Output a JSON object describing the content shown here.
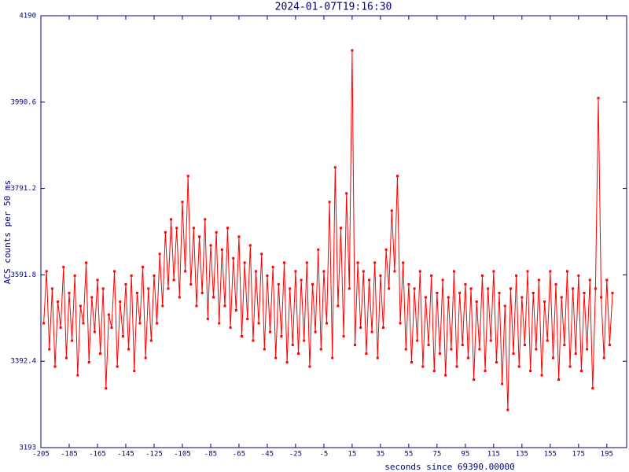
{
  "chart_data": {
    "type": "line",
    "title": "2024-01-07T19:16:30",
    "x_label": "seconds since 69390.00000",
    "y_label": "ACS counts per 50 ms",
    "xlim": [
      -205,
      209
    ],
    "ylim": [
      3193,
      4190
    ],
    "xticks": [
      -205,
      -185,
      -165,
      -145,
      -125,
      -105,
      -85,
      -65,
      -45,
      -25,
      -5,
      15,
      35,
      55,
      75,
      95,
      115,
      135,
      155,
      175,
      195
    ],
    "yticks": [
      3193,
      3392.4,
      3591.8,
      3791.2,
      3990.6,
      4190
    ],
    "series": [
      {
        "color": "#ff0000",
        "x": [
          -203,
          -201,
          -199,
          -197,
          -195,
          -193,
          -191,
          -189,
          -187,
          -185,
          -183,
          -181,
          -179,
          -177,
          -175,
          -173,
          -171,
          -169,
          -167,
          -165,
          -163,
          -161,
          -159,
          -157,
          -155,
          -153,
          -151,
          -149,
          -147,
          -145,
          -143,
          -141,
          -139,
          -137,
          -135,
          -133,
          -131,
          -129,
          -127,
          -125,
          -123,
          -121,
          -119,
          -117,
          -115,
          -113,
          -111,
          -109,
          -107,
          -105,
          -103,
          -101,
          -99,
          -97,
          -95,
          -93,
          -91,
          -89,
          -87,
          -85,
          -83,
          -81,
          -79,
          -77,
          -75,
          -73,
          -71,
          -69,
          -67,
          -65,
          -63,
          -61,
          -59,
          -57,
          -55,
          -53,
          -51,
          -49,
          -47,
          -45,
          -43,
          -41,
          -39,
          -37,
          -35,
          -33,
          -31,
          -29,
          -27,
          -25,
          -23,
          -21,
          -19,
          -17,
          -15,
          -13,
          -11,
          -9,
          -7,
          -5,
          -3,
          -1,
          1,
          3,
          5,
          7,
          9,
          11,
          13,
          15,
          17,
          19,
          21,
          23,
          25,
          27,
          29,
          31,
          33,
          35,
          37,
          39,
          41,
          43,
          45,
          47,
          49,
          51,
          53,
          55,
          57,
          59,
          61,
          63,
          65,
          67,
          69,
          71,
          73,
          75,
          77,
          79,
          81,
          83,
          85,
          87,
          89,
          91,
          93,
          95,
          97,
          99,
          101,
          103,
          105,
          107,
          109,
          111,
          113,
          115,
          117,
          119,
          121,
          123,
          125,
          127,
          129,
          131,
          133,
          135,
          137,
          139,
          141,
          143,
          145,
          147,
          149,
          151,
          153,
          155,
          157,
          159,
          161,
          163,
          165,
          167,
          169,
          171,
          173,
          175,
          177,
          179,
          181,
          183,
          185,
          187,
          189,
          191,
          193,
          195,
          197,
          199
        ],
        "values": [
          3480,
          3600,
          3420,
          3560,
          3380,
          3530,
          3470,
          3610,
          3400,
          3550,
          3440,
          3590,
          3360,
          3520,
          3480,
          3620,
          3390,
          3540,
          3460,
          3580,
          3410,
          3560,
          3330,
          3500,
          3470,
          3600,
          3380,
          3530,
          3450,
          3570,
          3420,
          3590,
          3370,
          3550,
          3480,
          3610,
          3400,
          3560,
          3440,
          3590,
          3480,
          3640,
          3520,
          3690,
          3560,
          3720,
          3580,
          3700,
          3540,
          3760,
          3600,
          3820,
          3570,
          3700,
          3520,
          3680,
          3550,
          3720,
          3490,
          3660,
          3540,
          3690,
          3480,
          3650,
          3520,
          3700,
          3470,
          3630,
          3510,
          3680,
          3450,
          3620,
          3490,
          3660,
          3440,
          3600,
          3480,
          3640,
          3420,
          3590,
          3460,
          3610,
          3400,
          3570,
          3450,
          3620,
          3390,
          3560,
          3430,
          3600,
          3410,
          3580,
          3440,
          3620,
          3380,
          3570,
          3460,
          3650,
          3420,
          3600,
          3480,
          3760,
          3400,
          3840,
          3520,
          3700,
          3450,
          3780,
          3560,
          4110,
          3430,
          3620,
          3470,
          3600,
          3410,
          3580,
          3460,
          3620,
          3400,
          3590,
          3470,
          3650,
          3560,
          3740,
          3600,
          3820,
          3480,
          3620,
          3420,
          3570,
          3390,
          3560,
          3440,
          3600,
          3380,
          3540,
          3430,
          3590,
          3370,
          3550,
          3410,
          3580,
          3360,
          3540,
          3420,
          3600,
          3380,
          3550,
          3430,
          3570,
          3400,
          3560,
          3350,
          3530,
          3420,
          3590,
          3370,
          3560,
          3440,
          3600,
          3390,
          3550,
          3340,
          3520,
          3280,
          3560,
          3410,
          3590,
          3380,
          3540,
          3430,
          3600,
          3370,
          3550,
          3420,
          3580,
          3360,
          3530,
          3440,
          3600,
          3400,
          3570,
          3350,
          3540,
          3430,
          3600,
          3380,
          3560,
          3410,
          3590,
          3370,
          3550,
          3420,
          3580,
          3330,
          3560,
          4000,
          3540,
          3400,
          3580,
          3430,
          3550
        ]
      }
    ]
  }
}
